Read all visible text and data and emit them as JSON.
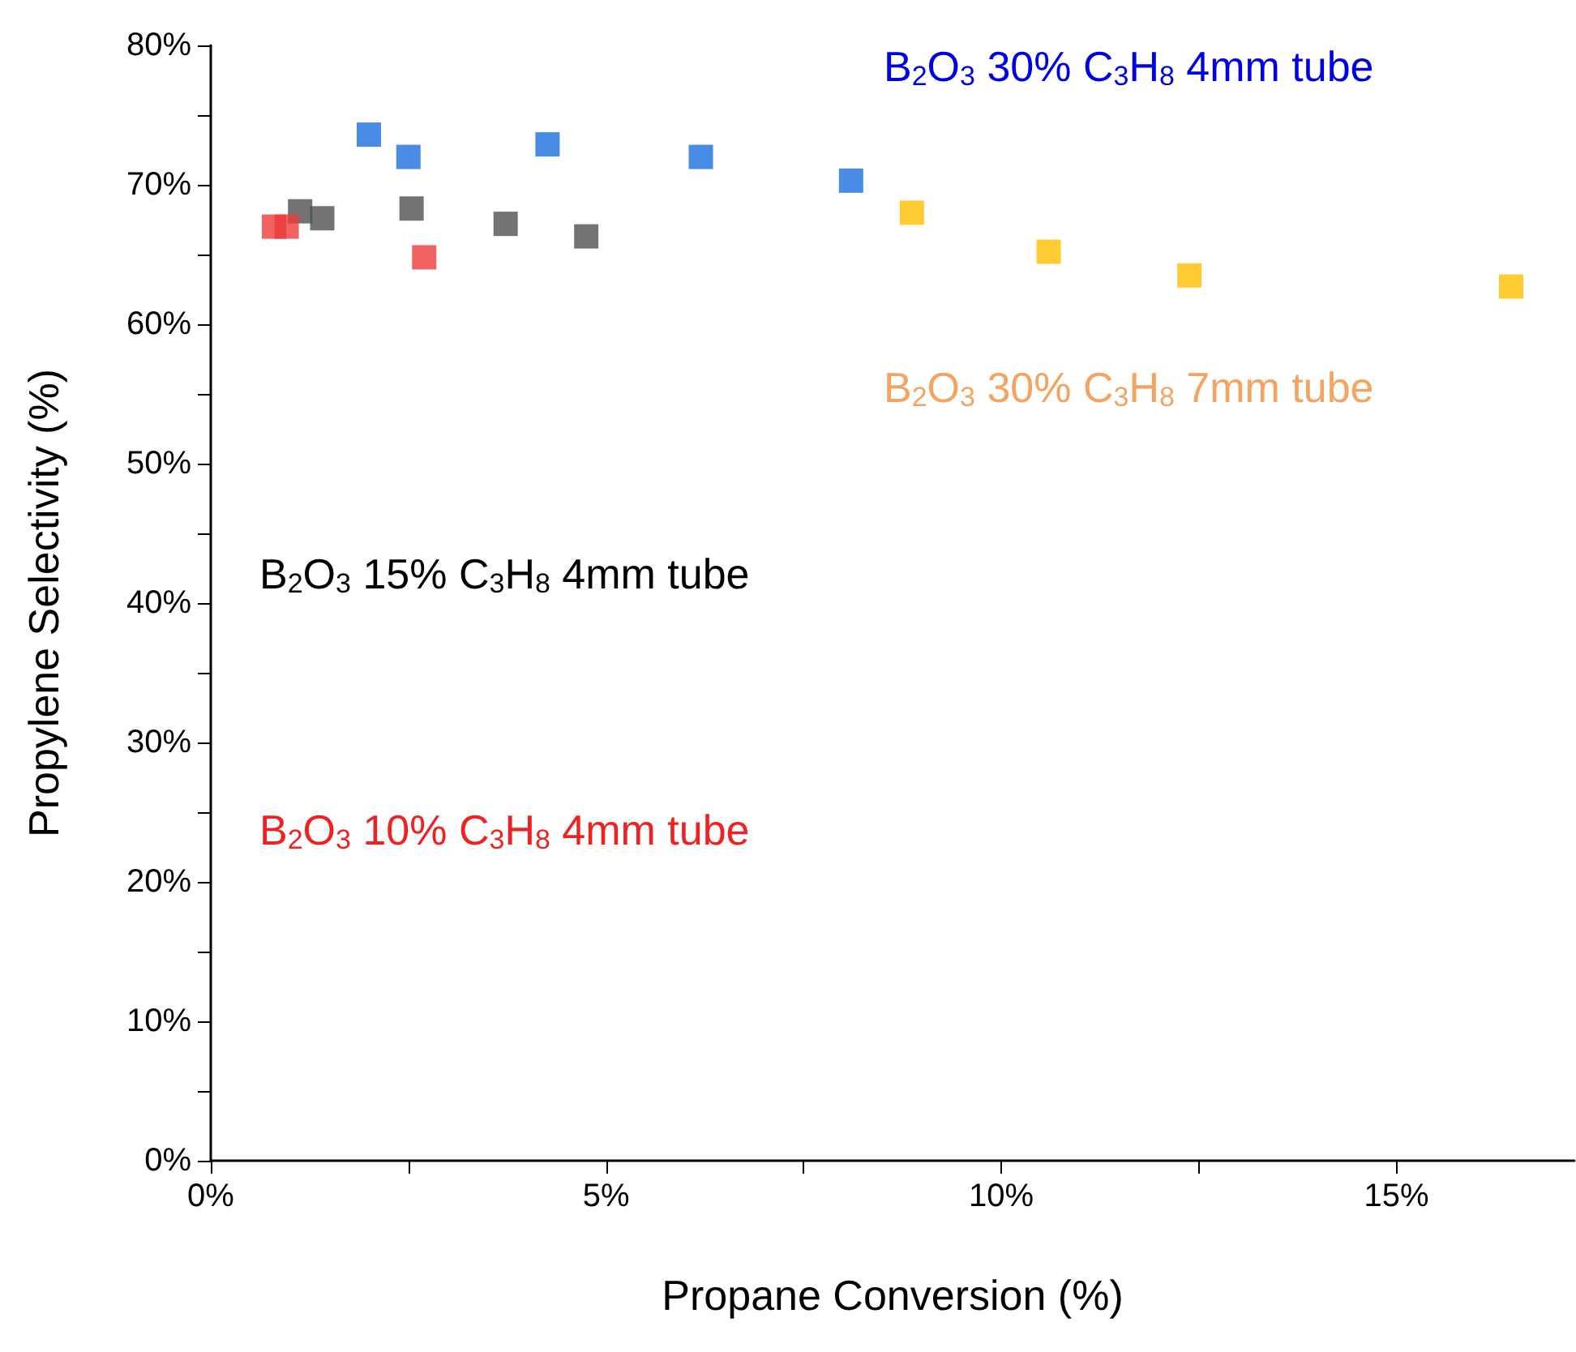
{
  "chart_data": {
    "type": "scatter",
    "xlabel": "Propane Conversion (%)",
    "ylabel": "Propylene Selectivity (%)",
    "xlim": [
      0,
      17.25
    ],
    "xticks": [
      {
        "value": 0,
        "label": "0%"
      },
      {
        "value": 2.5,
        "label": null
      },
      {
        "value": 5,
        "label": "5%"
      },
      {
        "value": 7.5,
        "label": null
      },
      {
        "value": 10,
        "label": "10%"
      },
      {
        "value": 12.5,
        "label": null
      },
      {
        "value": 15,
        "label": "15%"
      }
    ],
    "ylim": [
      0,
      80
    ],
    "yticks": [
      {
        "value": 0,
        "label": "0%"
      },
      {
        "value": 5,
        "label": null
      },
      {
        "value": 10,
        "label": "10%"
      },
      {
        "value": 15,
        "label": null
      },
      {
        "value": 20,
        "label": "20%"
      },
      {
        "value": 25,
        "label": null
      },
      {
        "value": 30,
        "label": "30%"
      },
      {
        "value": 35,
        "label": null
      },
      {
        "value": 40,
        "label": "40%"
      },
      {
        "value": 45,
        "label": null
      },
      {
        "value": 50,
        "label": "50%"
      },
      {
        "value": 55,
        "label": null
      },
      {
        "value": 60,
        "label": "60%"
      },
      {
        "value": 65,
        "label": null
      },
      {
        "value": 70,
        "label": "70%"
      },
      {
        "value": 75,
        "label": null
      },
      {
        "value": 80,
        "label": "80%"
      }
    ],
    "marker": "square",
    "grid": false,
    "legend": false,
    "series": [
      {
        "name": "B$_{2}$O$_{3}$ 30% C$_{3}$H$_{8}$ 4mm tube",
        "color": "#1a6fdf",
        "x": [
          2.0,
          2.5,
          4.26,
          6.2,
          8.1
        ],
        "values": [
          73.6,
          72.0,
          72.9,
          72.0,
          70.3
        ]
      },
      {
        "name": "B$_{2}$O$_{3}$ 30% C$_{3}$H$_{8}$ 7mm tube",
        "color": "#ffc000",
        "x": [
          8.87,
          10.6,
          12.38,
          16.45
        ],
        "values": [
          68.0,
          65.2,
          63.5,
          62.7
        ]
      },
      {
        "name": "B$_{2}$O$_{3}$ 15% C$_{3}$H$_{8}$ 4mm tube",
        "color": "#505050",
        "x": [
          1.13,
          1.41,
          2.54,
          3.73,
          4.75
        ],
        "values": [
          68.1,
          67.6,
          68.3,
          67.2,
          66.3
        ]
      },
      {
        "name": "B$_{2}$O$_{3}$ 10% C$_{3}$H$_{8}$ 4mm tube",
        "color": "#ee3b3b",
        "x": [
          0.8,
          0.96,
          2.7
        ],
        "values": [
          67.0,
          67.0,
          64.8
        ]
      }
    ]
  }
}
